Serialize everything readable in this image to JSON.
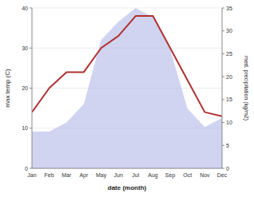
{
  "chart_data": {
    "type": "line",
    "xlabel": "date (month)",
    "ylabel": "max temp (C)",
    "y2label": "med. precipitation (kg/m2)",
    "categories": [
      "Jan",
      "Feb",
      "Mar",
      "Apr",
      "May",
      "Jun",
      "Jul",
      "Aug",
      "Sep",
      "Oct",
      "Nov",
      "Dec"
    ],
    "series": [
      {
        "type": "area",
        "axis": "y2",
        "color": "#b0b8e8",
        "values": [
          8,
          8,
          10,
          14,
          28,
          32,
          35,
          33,
          26,
          13,
          9,
          11
        ]
      },
      {
        "type": "line",
        "color": "#b03030",
        "values": [
          14,
          20,
          24,
          24,
          30,
          33,
          38,
          38,
          30,
          22,
          14,
          13
        ]
      }
    ],
    "ylim": [
      0,
      40
    ],
    "yticks": [
      0,
      10,
      20,
      30,
      40
    ],
    "y2lim": [
      0,
      35
    ],
    "y2ticks": [
      0,
      5,
      10,
      15,
      20,
      25,
      30,
      35
    ],
    "grid": true
  }
}
